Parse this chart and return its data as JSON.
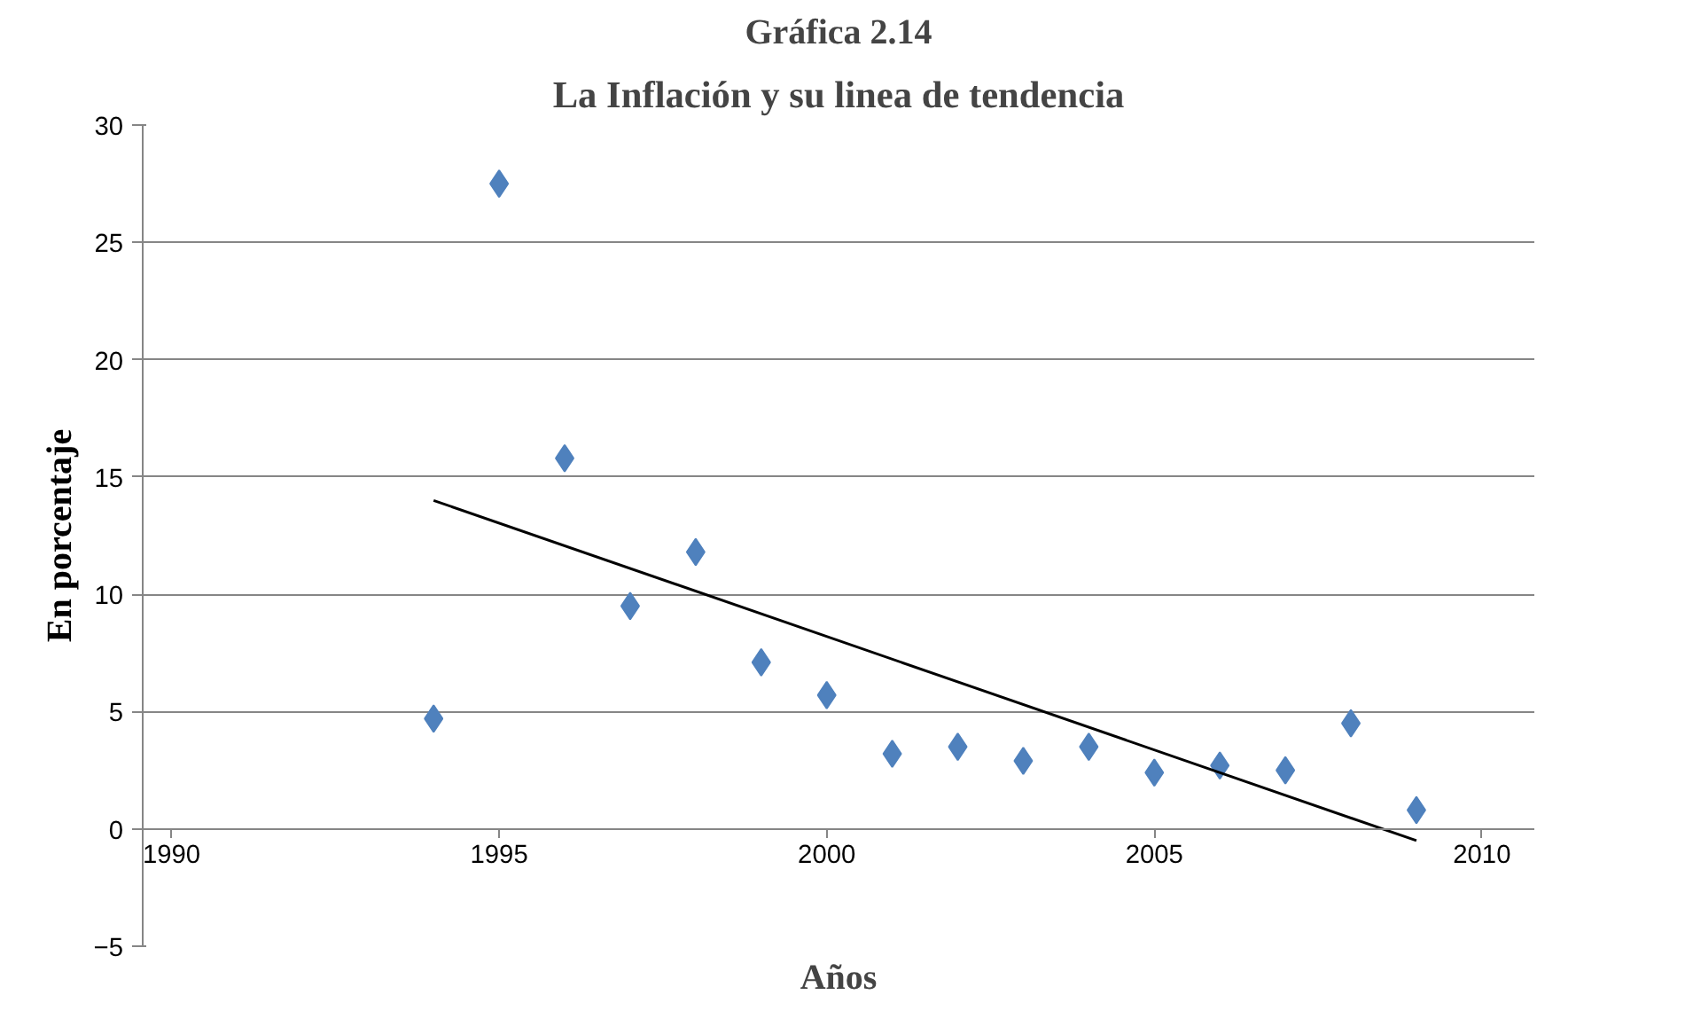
{
  "chart_data": {
    "type": "scatter",
    "title": "Gráfica 2.14",
    "subtitle": "La Inflación y su linea de tendencia",
    "xlabel": "Años",
    "ylabel": "En porcentaje",
    "x": [
      1994,
      1995,
      1996,
      1997,
      1998,
      1999,
      2000,
      2001,
      2002,
      2003,
      2004,
      2005,
      2006,
      2007,
      2008,
      2009
    ],
    "series": [
      {
        "type": "scatter",
        "color": "#4f81bd",
        "marker": "diamond",
        "values": [
          4.7,
          27.5,
          15.8,
          9.5,
          11.8,
          7.1,
          5.7,
          3.2,
          3.5,
          2.9,
          3.5,
          2.4,
          2.7,
          2.5,
          4.5,
          0.8
        ]
      },
      {
        "type": "line",
        "color": "#000000",
        "x": [
          1994,
          2009
        ],
        "values": [
          14.0,
          -0.5
        ],
        "line_style": "solid"
      }
    ],
    "xlim": [
      1990,
      2010
    ],
    "xticks": [
      1990,
      1995,
      2000,
      2005,
      2010
    ],
    "ylim": [
      -5,
      30
    ],
    "yticks": [
      -5,
      0,
      5,
      10,
      15,
      20,
      25,
      30
    ],
    "grid": "y"
  }
}
